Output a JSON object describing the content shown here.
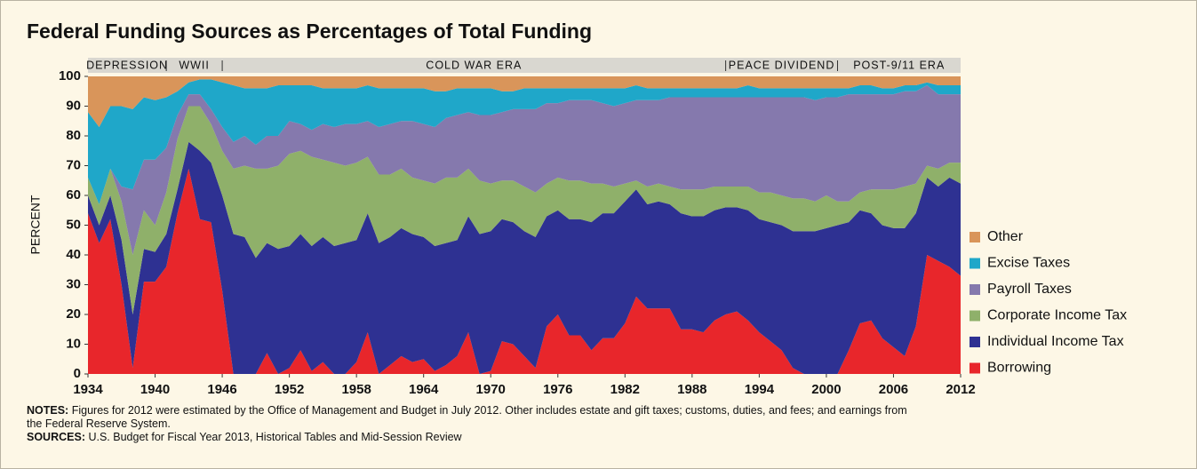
{
  "chart_data": {
    "type": "stacked-area",
    "title": "Federal Funding Sources as Percentages of Total Funding",
    "ylabel": "PERCENT",
    "x": [
      1934,
      1935,
      1936,
      1937,
      1938,
      1939,
      1940,
      1941,
      1942,
      1943,
      1944,
      1945,
      1946,
      1947,
      1948,
      1949,
      1950,
      1951,
      1952,
      1953,
      1954,
      1955,
      1956,
      1957,
      1958,
      1959,
      1960,
      1961,
      1962,
      1963,
      1964,
      1965,
      1966,
      1967,
      1968,
      1969,
      1970,
      1971,
      1972,
      1973,
      1974,
      1975,
      1976,
      1977,
      1978,
      1979,
      1980,
      1981,
      1982,
      1983,
      1984,
      1985,
      1986,
      1987,
      1988,
      1989,
      1990,
      1991,
      1992,
      1993,
      1994,
      1995,
      1996,
      1997,
      1998,
      1999,
      2000,
      2001,
      2002,
      2003,
      2004,
      2005,
      2006,
      2007,
      2008,
      2009,
      2010,
      2011,
      2012
    ],
    "xlim": [
      1934,
      2012
    ],
    "xticks": [
      1934,
      1940,
      1946,
      1952,
      1958,
      1964,
      1970,
      1976,
      1982,
      1988,
      1994,
      2000,
      2006,
      2012
    ],
    "ylim": [
      0,
      100
    ],
    "yticks": [
      0,
      10,
      20,
      30,
      40,
      50,
      60,
      70,
      80,
      90,
      100
    ],
    "series": [
      {
        "name": "Borrowing",
        "color": "#e8262b",
        "values": [
          54,
          44,
          52,
          30,
          2,
          31,
          31,
          36,
          54,
          69,
          52,
          51,
          28,
          0,
          0,
          0,
          7,
          0,
          2,
          8,
          1,
          4,
          0,
          0,
          4,
          14,
          0,
          3,
          6,
          4,
          5,
          1,
          3,
          6,
          14,
          0,
          1,
          11,
          10,
          6,
          2,
          16,
          20,
          13,
          13,
          8,
          12,
          12,
          17,
          26,
          22,
          22,
          22,
          15,
          15,
          14,
          18,
          20,
          21,
          18,
          14,
          11,
          8,
          2,
          0,
          0,
          0,
          0,
          8,
          17,
          18,
          12,
          9,
          6,
          16,
          40,
          38,
          36,
          33
        ]
      },
      {
        "name": "Individual Income Tax",
        "color": "#2e3192",
        "values": [
          6,
          6,
          8,
          15,
          18,
          11,
          10,
          11,
          8,
          9,
          23,
          20,
          32,
          47,
          46,
          39,
          37,
          42,
          41,
          39,
          42,
          42,
          43,
          44,
          41,
          40,
          44,
          43,
          43,
          43,
          41,
          42,
          41,
          39,
          39,
          47,
          47,
          41,
          41,
          42,
          44,
          37,
          35,
          39,
          39,
          43,
          42,
          42,
          41,
          36,
          35,
          36,
          35,
          39,
          38,
          39,
          37,
          36,
          35,
          37,
          38,
          40,
          42,
          46,
          48,
          48,
          49,
          50,
          43,
          38,
          36,
          38,
          40,
          43,
          38,
          26,
          25,
          30,
          31
        ]
      },
      {
        "name": "Corporate Income Tax",
        "color": "#8fb06a",
        "values": [
          6,
          7,
          9,
          13,
          20,
          13,
          9,
          14,
          17,
          12,
          15,
          13,
          15,
          22,
          24,
          30,
          25,
          28,
          31,
          28,
          30,
          26,
          28,
          26,
          26,
          19,
          23,
          21,
          20,
          19,
          19,
          21,
          22,
          21,
          16,
          18,
          16,
          13,
          14,
          15,
          15,
          11,
          11,
          13,
          13,
          13,
          10,
          9,
          6,
          3,
          6,
          6,
          6,
          8,
          9,
          9,
          8,
          7,
          7,
          8,
          9,
          10,
          10,
          11,
          11,
          10,
          11,
          8,
          7,
          6,
          8,
          12,
          13,
          14,
          10,
          4,
          6,
          5,
          7
        ]
      },
      {
        "name": "Payroll Taxes",
        "color": "#8579ad",
        "values": [
          0,
          0,
          0,
          5,
          22,
          17,
          22,
          15,
          8,
          4,
          4,
          5,
          8,
          9,
          10,
          8,
          11,
          10,
          11,
          9,
          9,
          12,
          12,
          14,
          13,
          12,
          16,
          17,
          16,
          19,
          19,
          19,
          20,
          21,
          19,
          22,
          23,
          23,
          24,
          26,
          28,
          27,
          25,
          27,
          27,
          28,
          27,
          27,
          27,
          27,
          29,
          28,
          30,
          31,
          31,
          31,
          30,
          30,
          30,
          30,
          32,
          32,
          33,
          34,
          34,
          34,
          33,
          35,
          36,
          33,
          32,
          32,
          32,
          32,
          31,
          27,
          25,
          23,
          23
        ]
      },
      {
        "name": "Excise Taxes",
        "color": "#1fa7c9",
        "values": [
          22,
          26,
          21,
          27,
          27,
          21,
          20,
          17,
          8,
          4,
          5,
          10,
          15,
          19,
          16,
          19,
          16,
          17,
          12,
          13,
          15,
          12,
          13,
          12,
          12,
          12,
          13,
          12,
          11,
          11,
          12,
          12,
          9,
          9,
          8,
          9,
          9,
          7,
          6,
          7,
          7,
          5,
          5,
          4,
          4,
          4,
          5,
          6,
          5,
          5,
          4,
          4,
          3,
          3,
          3,
          3,
          3,
          3,
          3,
          4,
          3,
          3,
          3,
          3,
          3,
          4,
          3,
          3,
          2,
          3,
          3,
          2,
          2,
          2,
          2,
          1,
          3,
          3,
          3
        ]
      },
      {
        "name": "Other",
        "color": "#d9955a",
        "values": [
          12,
          17,
          10,
          10,
          11,
          7,
          8,
          7,
          5,
          2,
          1,
          1,
          2,
          3,
          4,
          4,
          4,
          3,
          3,
          3,
          3,
          4,
          4,
          4,
          4,
          3,
          4,
          4,
          4,
          4,
          4,
          5,
          5,
          4,
          4,
          4,
          4,
          5,
          5,
          4,
          4,
          4,
          4,
          4,
          4,
          4,
          4,
          4,
          4,
          3,
          4,
          4,
          4,
          4,
          4,
          4,
          4,
          4,
          4,
          3,
          4,
          4,
          4,
          4,
          4,
          4,
          4,
          4,
          4,
          3,
          3,
          4,
          4,
          3,
          3,
          2,
          3,
          3,
          3
        ]
      }
    ],
    "eras": [
      {
        "label": "DEPRESSION",
        "start": 1934,
        "end": 1941
      },
      {
        "label": "WWII",
        "start": 1941,
        "end": 1946
      },
      {
        "label": "COLD WAR ERA",
        "start": 1946,
        "end": 1991
      },
      {
        "label": "PEACE DIVIDEND",
        "start": 1991,
        "end": 2001
      },
      {
        "label": "POST-9/11 ERA",
        "start": 2001,
        "end": 2012
      }
    ],
    "notes": {
      "label": "NOTES:",
      "text": "Figures for 2012 were estimated by the Office of Management and Budget in July 2012. Other includes estate and gift taxes; customs, duties, and fees; and earnings from the Federal Reserve System."
    },
    "sources": {
      "label": "SOURCES:",
      "text": "U.S. Budget for Fiscal Year 2013, Historical Tables and Mid-Session Review"
    }
  }
}
